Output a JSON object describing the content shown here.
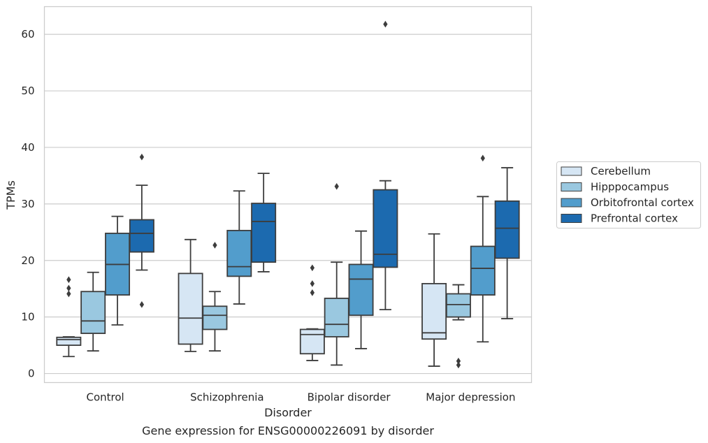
{
  "chart_data": {
    "type": "box",
    "title": "",
    "caption": "Gene expression for ENSG00000226091 by disorder",
    "xlabel": "Disorder",
    "ylabel": "TPMs",
    "ylim": [
      -1.6,
      64.9
    ],
    "yticks": [
      0,
      10,
      20,
      30,
      40,
      50,
      60
    ],
    "grid": "horizontal",
    "legend_position": "right",
    "categories": [
      "Control",
      "Schizophrenia",
      "Bipolar disorder",
      "Major depression"
    ],
    "series": [
      {
        "name": "Cerebellum",
        "color": "#d6e6f4",
        "boxes": [
          {
            "whisker_low": 3.0,
            "q1": 5.0,
            "median": 6.0,
            "q3": 6.4,
            "whisker_high": 6.5,
            "outliers": [
              14.1,
              15.1,
              16.6
            ]
          },
          {
            "whisker_low": 3.9,
            "q1": 5.2,
            "median": 9.8,
            "q3": 17.7,
            "whisker_high": 23.7,
            "outliers": []
          },
          {
            "whisker_low": 2.3,
            "q1": 3.5,
            "median": 6.9,
            "q3": 7.8,
            "whisker_high": 7.9,
            "outliers": [
              14.3,
              15.9,
              18.7
            ]
          },
          {
            "whisker_low": 1.3,
            "q1": 6.1,
            "median": 7.2,
            "q3": 15.9,
            "whisker_high": 24.7,
            "outliers": []
          }
        ]
      },
      {
        "name": "Hipppocampus",
        "color": "#9ac8e0",
        "boxes": [
          {
            "whisker_low": 4.0,
            "q1": 7.1,
            "median": 9.3,
            "q3": 14.5,
            "whisker_high": 17.9,
            "outliers": []
          },
          {
            "whisker_low": 4.0,
            "q1": 7.8,
            "median": 10.3,
            "q3": 11.9,
            "whisker_high": 14.5,
            "outliers": [
              22.7
            ]
          },
          {
            "whisker_low": 1.5,
            "q1": 6.5,
            "median": 8.7,
            "q3": 13.3,
            "whisker_high": 19.7,
            "outliers": [
              33.1
            ]
          },
          {
            "whisker_low": 9.5,
            "q1": 10.0,
            "median": 12.2,
            "q3": 14.1,
            "whisker_high": 15.7,
            "outliers": [
              1.5,
              2.2
            ]
          }
        ]
      },
      {
        "name": "Orbitofrontal cortex",
        "color": "#529dcc",
        "boxes": [
          {
            "whisker_low": 8.6,
            "q1": 13.9,
            "median": 19.3,
            "q3": 24.8,
            "whisker_high": 27.8,
            "outliers": []
          },
          {
            "whisker_low": 12.3,
            "q1": 17.2,
            "median": 18.9,
            "q3": 25.3,
            "whisker_high": 32.3,
            "outliers": []
          },
          {
            "whisker_low": 4.4,
            "q1": 10.3,
            "median": 16.7,
            "q3": 19.3,
            "whisker_high": 25.2,
            "outliers": []
          },
          {
            "whisker_low": 5.6,
            "q1": 13.9,
            "median": 18.6,
            "q3": 22.5,
            "whisker_high": 31.3,
            "outliers": [
              38.1
            ]
          }
        ]
      },
      {
        "name": "Prefrontal cortex",
        "color": "#1c6aaf",
        "boxes": [
          {
            "whisker_low": 18.3,
            "q1": 21.5,
            "median": 24.8,
            "q3": 27.2,
            "whisker_high": 33.3,
            "outliers": [
              12.2,
              38.3
            ]
          },
          {
            "whisker_low": 18.0,
            "q1": 19.7,
            "median": 26.9,
            "q3": 30.1,
            "whisker_high": 35.4,
            "outliers": []
          },
          {
            "whisker_low": 11.3,
            "q1": 18.8,
            "median": 21.1,
            "q3": 32.5,
            "whisker_high": 34.1,
            "outliers": [
              61.8
            ]
          },
          {
            "whisker_low": 9.7,
            "q1": 20.4,
            "median": 25.7,
            "q3": 30.5,
            "whisker_high": 36.4,
            "outliers": []
          }
        ]
      }
    ]
  }
}
